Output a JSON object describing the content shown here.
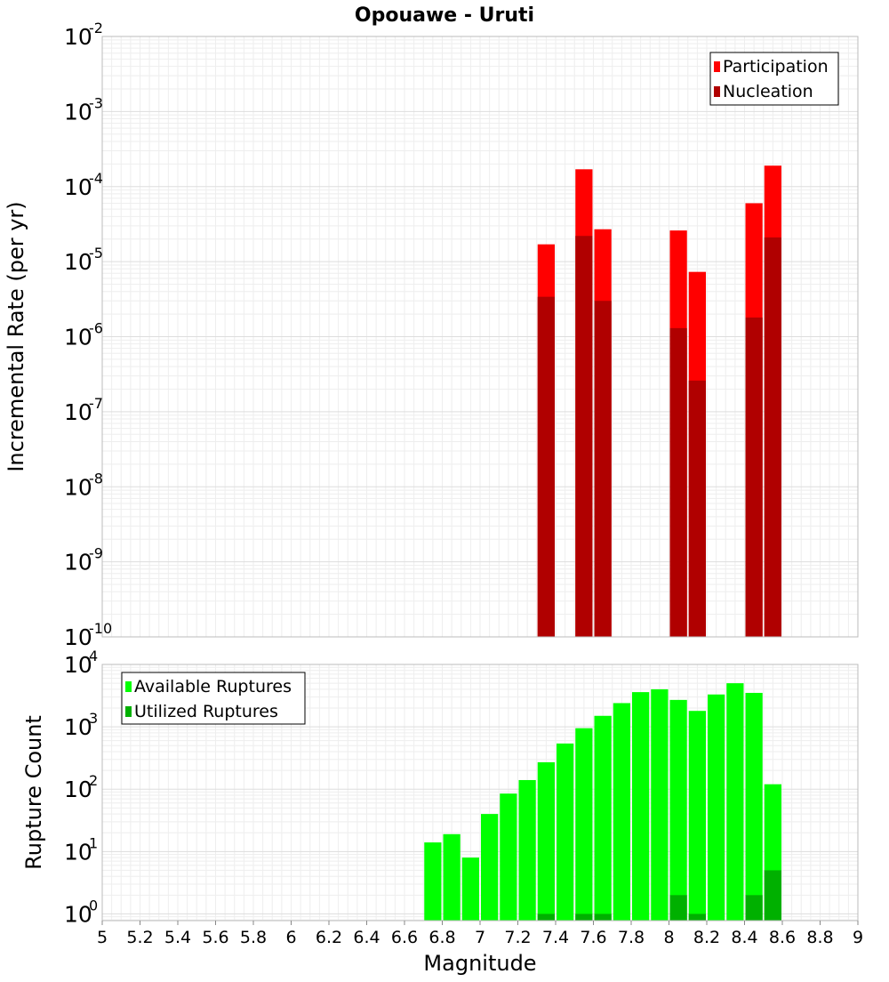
{
  "chart_data": [
    {
      "type": "bar",
      "title": "Opouawe - Uruti",
      "xlabel": "",
      "ylabel": "Incremental Rate (per yr)",
      "yscale": "log",
      "xlim": [
        5,
        9
      ],
      "ylim": [
        1e-10,
        0.01
      ],
      "y_tick_exponents": [
        -10,
        -9,
        -8,
        -7,
        -6,
        -5,
        -4,
        -3,
        -2
      ],
      "grid": true,
      "legend_placement": "top-right",
      "bar_width": 0.1,
      "series": [
        {
          "name": "Participation",
          "color": "#ff0000",
          "x": [
            7.35,
            7.55,
            7.65,
            8.05,
            8.15,
            8.45,
            8.55
          ],
          "values": [
            1.7e-05,
            0.00017,
            2.7e-05,
            2.6e-05,
            7.3e-06,
            6e-05,
            0.00019
          ]
        },
        {
          "name": "Nucleation",
          "color": "#b00000",
          "x": [
            7.35,
            7.55,
            7.65,
            8.05,
            8.15,
            8.45,
            8.55
          ],
          "values": [
            3.4e-06,
            2.2e-05,
            3e-06,
            1.3e-06,
            2.6e-07,
            1.8e-06,
            2.1e-05
          ]
        }
      ]
    },
    {
      "type": "bar",
      "title": "",
      "xlabel": "Magnitude",
      "ylabel": "Rupture Count",
      "yscale": "log",
      "xlim": [
        5,
        9
      ],
      "ylim": [
        0.78,
        10000
      ],
      "y_tick_exponents": [
        0,
        1,
        2,
        3,
        4
      ],
      "x_ticks": [
        "5",
        "5.2",
        "5.4",
        "5.6",
        "5.8",
        "6",
        "6.2",
        "6.4",
        "6.6",
        "6.8",
        "7",
        "7.2",
        "7.4",
        "7.6",
        "7.8",
        "8",
        "8.2",
        "8.4",
        "8.6",
        "8.8",
        "9"
      ],
      "grid": true,
      "legend_placement": "top-left",
      "bar_width": 0.1,
      "series": [
        {
          "name": "Available Ruptures",
          "color": "#00ff00",
          "x": [
            6.75,
            6.85,
            6.95,
            7.05,
            7.15,
            7.25,
            7.35,
            7.45,
            7.55,
            7.65,
            7.75,
            7.85,
            7.95,
            8.05,
            8.15,
            8.25,
            8.35,
            8.45,
            8.55
          ],
          "values": [
            14,
            19,
            8,
            40,
            85,
            140,
            270,
            540,
            950,
            1500,
            2400,
            3600,
            4000,
            2700,
            1800,
            3300,
            5000,
            3500,
            120
          ]
        },
        {
          "name": "Utilized Ruptures",
          "color": "#00b000",
          "x": [
            7.35,
            7.55,
            7.65,
            8.05,
            8.15,
            8.45,
            8.55
          ],
          "values": [
            1,
            1,
            1,
            2,
            1,
            2,
            5
          ]
        }
      ]
    }
  ]
}
